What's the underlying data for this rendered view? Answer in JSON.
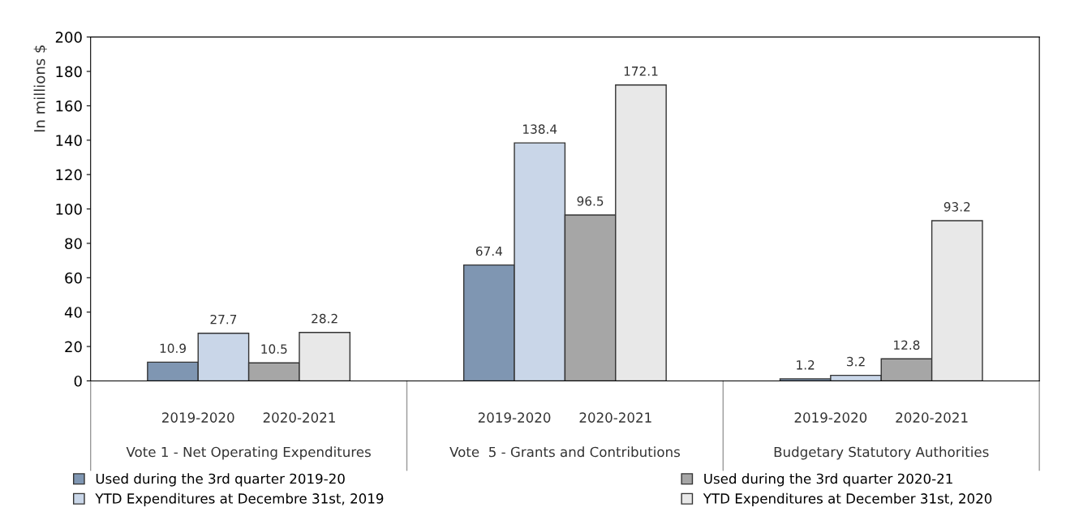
{
  "chart_data": {
    "type": "bar",
    "ylabel": "In millions $",
    "categories": [
      "Vote 1 - Net Operating Expenditures",
      "Vote  5 - Grants and Contributions",
      "Budgetary Statutory Authorities"
    ],
    "series": [
      {
        "name": "Used during the 3rd quarter 2019-20",
        "color": "#7f96b2",
        "values": [
          10.9,
          67.4,
          1.2
        ]
      },
      {
        "name": "YTD Expenditures at Decembre 31st, 2019",
        "color": "#c9d6e8",
        "values": [
          27.7,
          138.4,
          3.2
        ]
      },
      {
        "name": "Used during the 3rd quarter 2020-21",
        "color": "#a6a6a6",
        "values": [
          10.5,
          96.5,
          12.8
        ]
      },
      {
        "name": "YTD Expenditures at December 31st, 2020",
        "color": "#e8e8e8",
        "values": [
          28.2,
          172.1,
          93.2
        ]
      }
    ],
    "annotations": [
      "2019-2020",
      "2020-2021",
      "2019-2020",
      "2020-2021",
      "2019-2020",
      "2020-2021"
    ],
    "ylim": [
      0,
      200
    ],
    "yticks": [
      0,
      20,
      40,
      60,
      80,
      100,
      120,
      140,
      160,
      180,
      200
    ],
    "data_labels": true,
    "legend": "bottom",
    "grid": false
  }
}
